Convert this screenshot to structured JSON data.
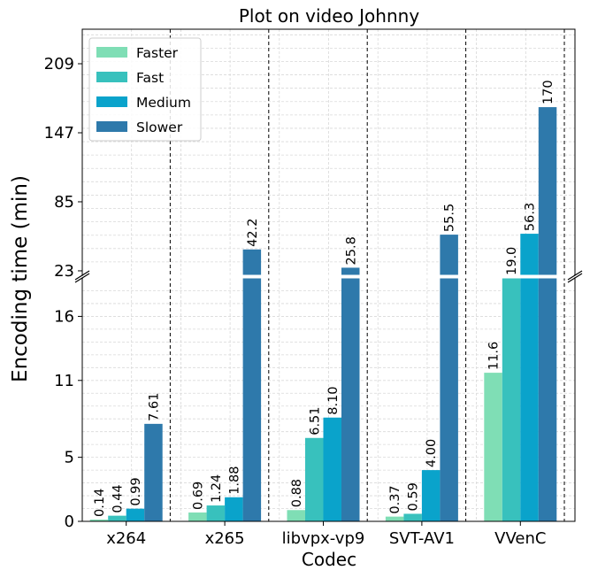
{
  "chart_data": {
    "type": "bar",
    "title": "Plot on video Johnny",
    "xlabel": "Codec",
    "ylabel": "Encoding time (min)",
    "categories": [
      "x264",
      "x265",
      "libvpx-vp9",
      "SVT-AV1",
      "VVenC"
    ],
    "series": [
      {
        "name": "Faster",
        "color": "#7fdeb5",
        "values": [
          0.14,
          0.69,
          0.88,
          0.37,
          11.6
        ],
        "labels": [
          "0.14",
          "0.69",
          "0.88",
          "0.37",
          "11.6"
        ]
      },
      {
        "name": "Fast",
        "color": "#38c1bd",
        "values": [
          0.44,
          1.24,
          6.51,
          0.59,
          19.0
        ],
        "labels": [
          "0.44",
          "1.24",
          "6.51",
          "0.59",
          "19.0"
        ]
      },
      {
        "name": "Medium",
        "color": "#0aa3cb",
        "values": [
          0.99,
          1.88,
          8.1,
          4.0,
          56.3
        ],
        "labels": [
          "0.99",
          "1.88",
          "8.10",
          "4.00",
          "56.3"
        ]
      },
      {
        "name": "Slower",
        "color": "#2e79ab",
        "values": [
          7.61,
          42.2,
          25.8,
          55.5,
          170
        ],
        "labels": [
          "7.61",
          "42.2",
          "25.8",
          "55.5",
          "170"
        ]
      }
    ],
    "y_axis": "broken",
    "lower_ylim": [
      0,
      19
    ],
    "upper_ylim": [
      19,
      240
    ],
    "lower_ticks": [
      "0",
      "5",
      "11",
      "16"
    ],
    "upper_ticks": [
      "23",
      "85",
      "147",
      "209"
    ],
    "grid": true,
    "legend_position": "upper-left",
    "category_separators": "dashed"
  }
}
